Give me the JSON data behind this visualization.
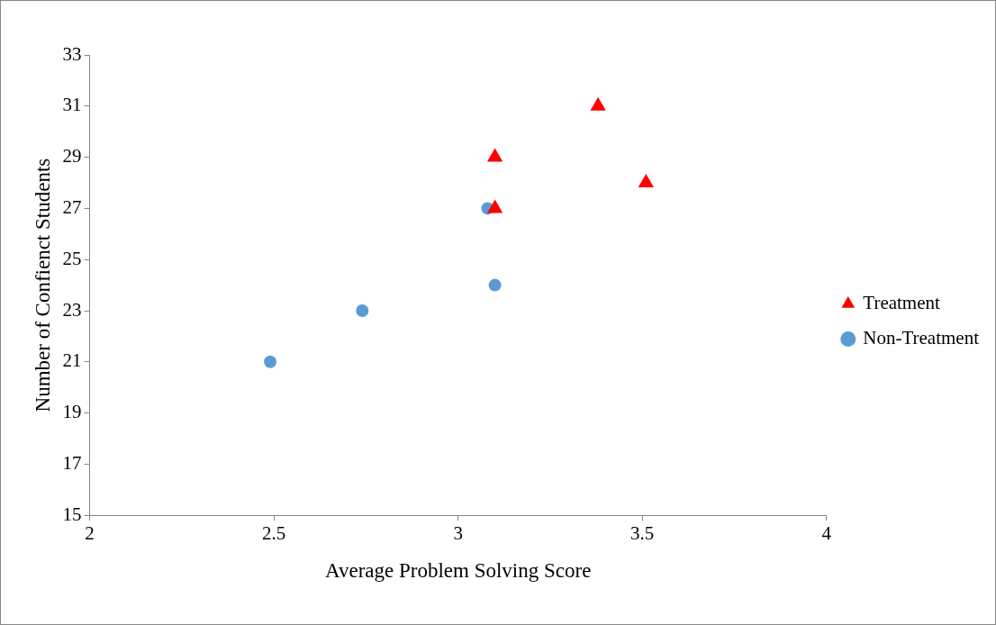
{
  "chart_data": {
    "type": "scatter",
    "xlabel": "Average Problem Solving Score",
    "ylabel": "Number of Confienct Students",
    "xlim": [
      2,
      4
    ],
    "xticks": [
      2,
      2.5,
      3,
      3.5,
      4
    ],
    "ylim": [
      15,
      33
    ],
    "yticks": [
      15,
      17,
      19,
      21,
      23,
      25,
      27,
      29,
      31,
      33
    ],
    "grid": false,
    "legend": "right",
    "series": [
      {
        "name": "Treatment",
        "color": "#ff0000",
        "marker": "triangle",
        "x": [
          3.1,
          3.38,
          3.51,
          3.1
        ],
        "values": [
          29,
          31,
          28,
          27
        ]
      },
      {
        "name": "Non-Treatment",
        "color": "#5b9bd5",
        "marker": "circle",
        "x": [
          2.49,
          2.74,
          3.08,
          3.1
        ],
        "values": [
          21,
          23,
          27,
          24
        ]
      }
    ]
  }
}
